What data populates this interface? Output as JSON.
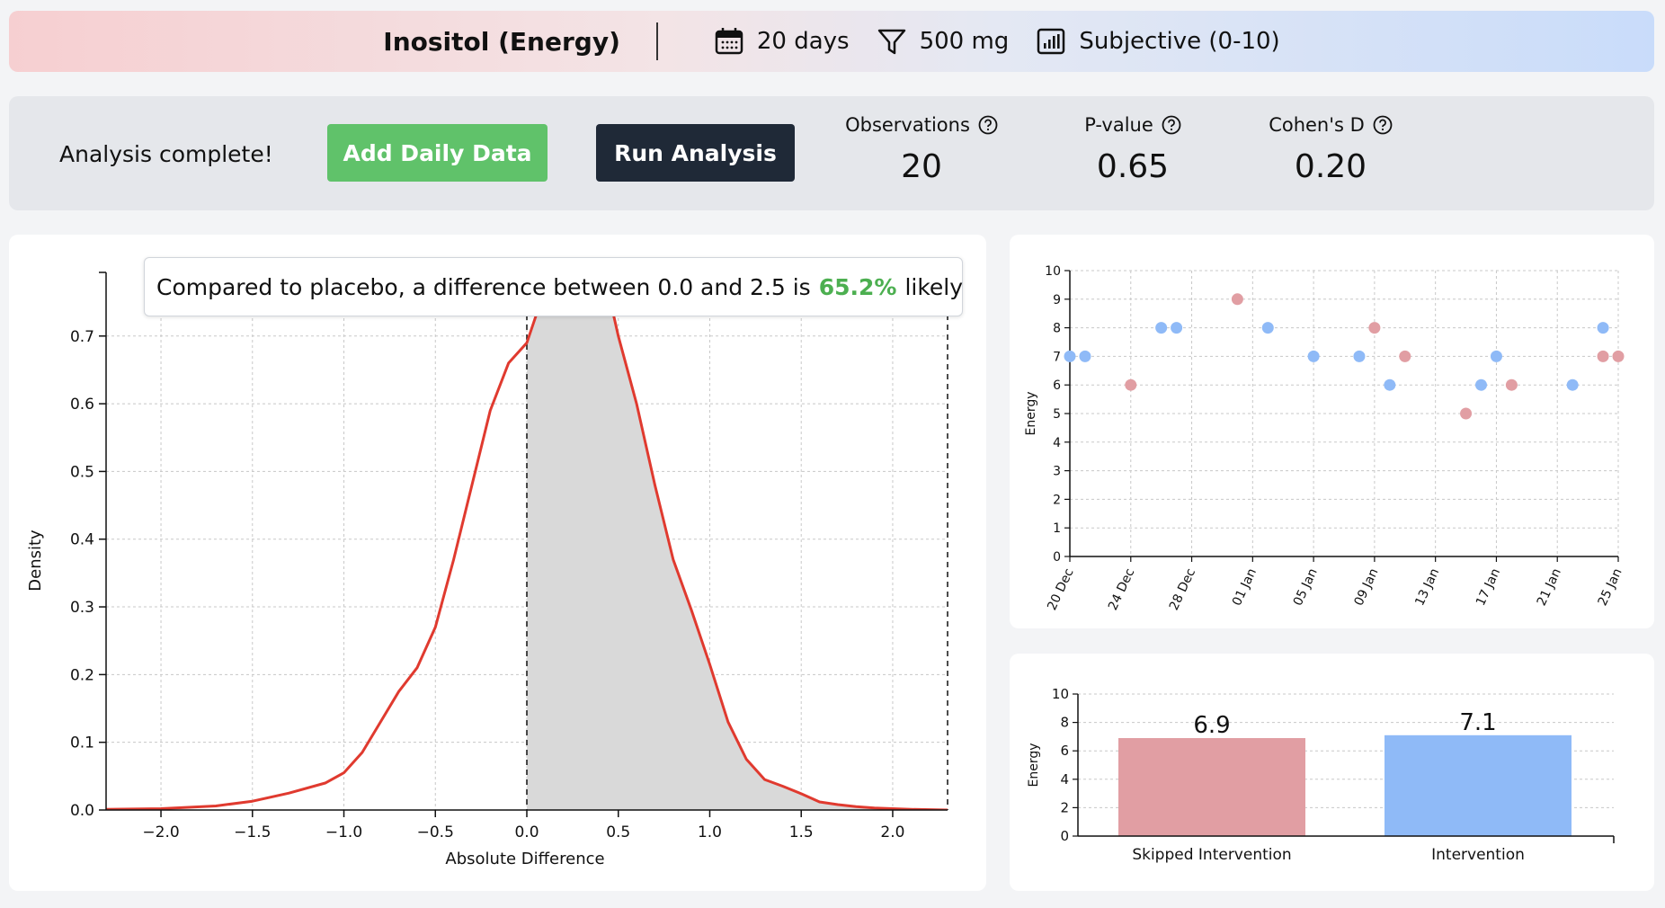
{
  "header": {
    "title": "Inositol (Energy)",
    "duration": "20 days",
    "dose": "500 mg",
    "scale": "Subjective (0-10)",
    "icons": [
      "calendar-icon",
      "filter-icon",
      "bar-chart-icon"
    ]
  },
  "panel": {
    "status": "Analysis complete!",
    "add_label": "Add Daily Data",
    "run_label": "Run Analysis",
    "stats": [
      {
        "label": "Observations",
        "value": "20"
      },
      {
        "label": "P-value",
        "value": "0.65"
      },
      {
        "label": "Cohen's D",
        "value": "0.20"
      }
    ]
  },
  "tooltip": {
    "prefix": "Compared to placebo, a difference between 0.0 and 2.5 is",
    "percent": "65.2%",
    "suffix": "likely"
  },
  "colors": {
    "accent_green": "#60c26a",
    "dark": "#1f2937",
    "density_line": "#e03a2f",
    "skipped": "#e19ea3",
    "intervention": "#8fbaf7"
  },
  "chart_data": [
    {
      "type": "area",
      "xlabel": "Absolute Difference",
      "ylabel": "Density",
      "xlim": [
        -2.3,
        2.3
      ],
      "ylim": [
        0,
        0.79
      ],
      "xticks": [
        "−2.0",
        "−1.5",
        "−1.0",
        "−0.5",
        "0.0",
        "0.5",
        "1.0",
        "1.5",
        "2.0"
      ],
      "yticks": [
        "0.0",
        "0.1",
        "0.2",
        "0.3",
        "0.4",
        "0.5",
        "0.6",
        "0.7"
      ],
      "grid": true,
      "shaded_range": [
        0.0,
        2.3
      ],
      "x": [
        -2.3,
        -2.0,
        -1.7,
        -1.5,
        -1.3,
        -1.1,
        -1.0,
        -0.9,
        -0.8,
        -0.7,
        -0.6,
        -0.5,
        -0.4,
        -0.3,
        -0.2,
        -0.1,
        0.0,
        0.05,
        0.1,
        0.15,
        0.2,
        0.3,
        0.4,
        0.45,
        0.5,
        0.55,
        0.6,
        0.7,
        0.8,
        0.9,
        1.0,
        1.1,
        1.2,
        1.3,
        1.4,
        1.5,
        1.6,
        1.7,
        1.8,
        1.9,
        2.0,
        2.1,
        2.3
      ],
      "y": [
        0.001,
        0.002,
        0.006,
        0.013,
        0.025,
        0.04,
        0.055,
        0.085,
        0.13,
        0.175,
        0.21,
        0.27,
        0.37,
        0.48,
        0.59,
        0.66,
        0.69,
        0.73,
        0.77,
        0.8,
        0.82,
        0.84,
        0.8,
        0.76,
        0.7,
        0.65,
        0.6,
        0.48,
        0.37,
        0.295,
        0.215,
        0.13,
        0.075,
        0.045,
        0.035,
        0.024,
        0.012,
        0.008,
        0.005,
        0.003,
        0.002,
        0.001,
        0.0
      ]
    },
    {
      "type": "scatter",
      "ylabel": "Energy",
      "ylim": [
        0,
        10
      ],
      "xticks": [
        "20 Dec",
        "24 Dec",
        "28 Dec",
        "01 Jan",
        "05 Jan",
        "09 Jan",
        "13 Jan",
        "17 Jan",
        "21 Jan",
        "25 Jan"
      ],
      "xlim": [
        "2023-12-20",
        "2024-01-25"
      ],
      "grid": true,
      "series": [
        {
          "name": "Skipped Intervention",
          "color": "#e19ea3",
          "x": [
            "2023-12-24",
            "2023-12-31",
            "2024-01-09",
            "2024-01-11",
            "2024-01-15",
            "2024-01-18",
            "2024-01-24",
            "2024-01-25"
          ],
          "y": [
            6,
            9,
            8,
            7,
            5,
            6,
            7,
            7
          ]
        },
        {
          "name": "Intervention",
          "color": "#8fbaf7",
          "x": [
            "2023-12-20",
            "2023-12-21",
            "2023-12-26",
            "2023-12-27",
            "2024-01-02",
            "2024-01-05",
            "2024-01-08",
            "2024-01-10",
            "2024-01-16",
            "2024-01-17",
            "2024-01-22",
            "2024-01-24"
          ],
          "y": [
            7,
            7,
            8,
            8,
            8,
            7,
            7,
            6,
            6,
            7,
            6,
            8
          ]
        }
      ]
    },
    {
      "type": "bar",
      "ylabel": "Energy",
      "ylim": [
        0,
        10
      ],
      "yticks": [
        "0",
        "2",
        "4",
        "6",
        "8",
        "10"
      ],
      "categories": [
        "Skipped Intervention",
        "Intervention"
      ],
      "values": [
        6.9,
        7.1
      ],
      "value_labels": [
        "6.9",
        "7.1"
      ],
      "colors": [
        "#e19ea3",
        "#8fbaf7"
      ],
      "grid": true
    }
  ]
}
